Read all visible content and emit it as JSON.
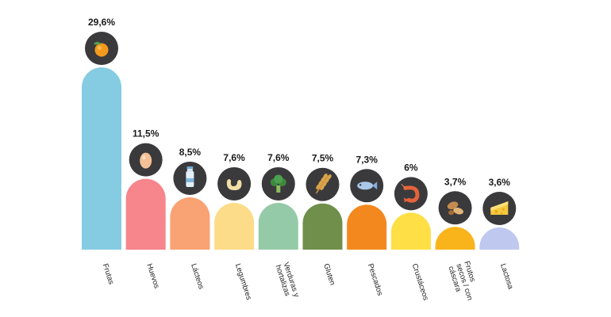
{
  "chart_data": {
    "type": "bar",
    "title": "",
    "xlabel": "",
    "ylabel": "",
    "ylim": [
      0,
      30
    ],
    "grid": false,
    "legend": "none",
    "categories": [
      "Frutas",
      "Huevos",
      "Lácteos",
      "Legumbres",
      "Verduras y hortalizas",
      "Gluten",
      "Pescados",
      "Crustáceos",
      "Frutos secos / con cáscara",
      "Lactosa"
    ],
    "category_lines": [
      [
        "Frutas"
      ],
      [
        "Huevos"
      ],
      [
        "Lácteos"
      ],
      [
        "Legumbres"
      ],
      [
        "Verduras y",
        "hortalizas"
      ],
      [
        "Gluten"
      ],
      [
        "Pescados"
      ],
      [
        "Crustáceos"
      ],
      [
        "Frutos",
        "secos / con",
        "cáscara"
      ],
      [
        "Lactosa"
      ]
    ],
    "values": [
      29.6,
      11.5,
      8.5,
      7.6,
      7.6,
      7.5,
      7.3,
      6,
      3.7,
      3.6
    ],
    "value_labels": [
      "29,6%",
      "11,5%",
      "8,5%",
      "7,6%",
      "7,6%",
      "7,5%",
      "7,3%",
      "6%",
      "3,7%",
      "3,6%"
    ],
    "colors": [
      "#85cce2",
      "#f6858c",
      "#f9a273",
      "#fcdc88",
      "#95caa8",
      "#6f8f4a",
      "#f3891e",
      "#fedf46",
      "#f9b41c",
      "#bfc9f0"
    ],
    "icons": [
      "orange-icon",
      "egg-icon",
      "milk-bottle-icon",
      "cashew-icon",
      "broccoli-icon",
      "wheat-icon",
      "fish-icon",
      "shrimp-icon",
      "nuts-icon",
      "cheese-icon"
    ]
  }
}
